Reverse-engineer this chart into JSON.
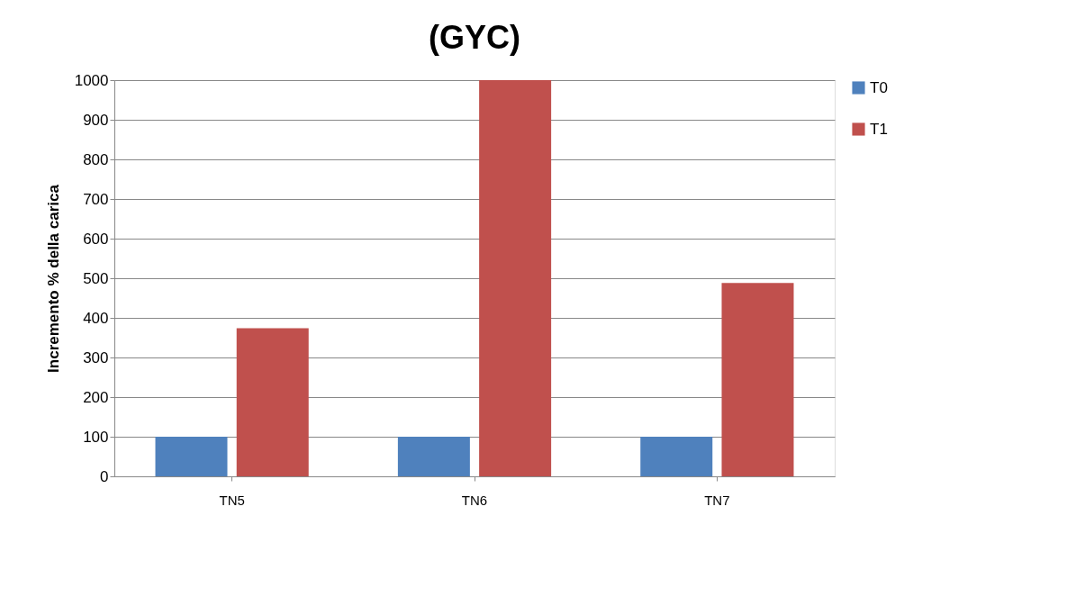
{
  "chart_data": {
    "type": "bar",
    "title": "(GYC)",
    "ylabel": "Incremento % della carica",
    "categories": [
      "TN5",
      "TN6",
      "TN7"
    ],
    "series": [
      {
        "name": "T0",
        "color": "#4f81bd",
        "values": [
          100,
          100,
          100
        ]
      },
      {
        "name": "T1",
        "color": "#c0504d",
        "values": [
          374,
          1000,
          488
        ]
      }
    ],
    "ylim": [
      0,
      1000
    ],
    "yticks": [
      0,
      100,
      200,
      300,
      400,
      500,
      600,
      700,
      800,
      900,
      1000
    ],
    "grid": "y",
    "legend": "right"
  }
}
